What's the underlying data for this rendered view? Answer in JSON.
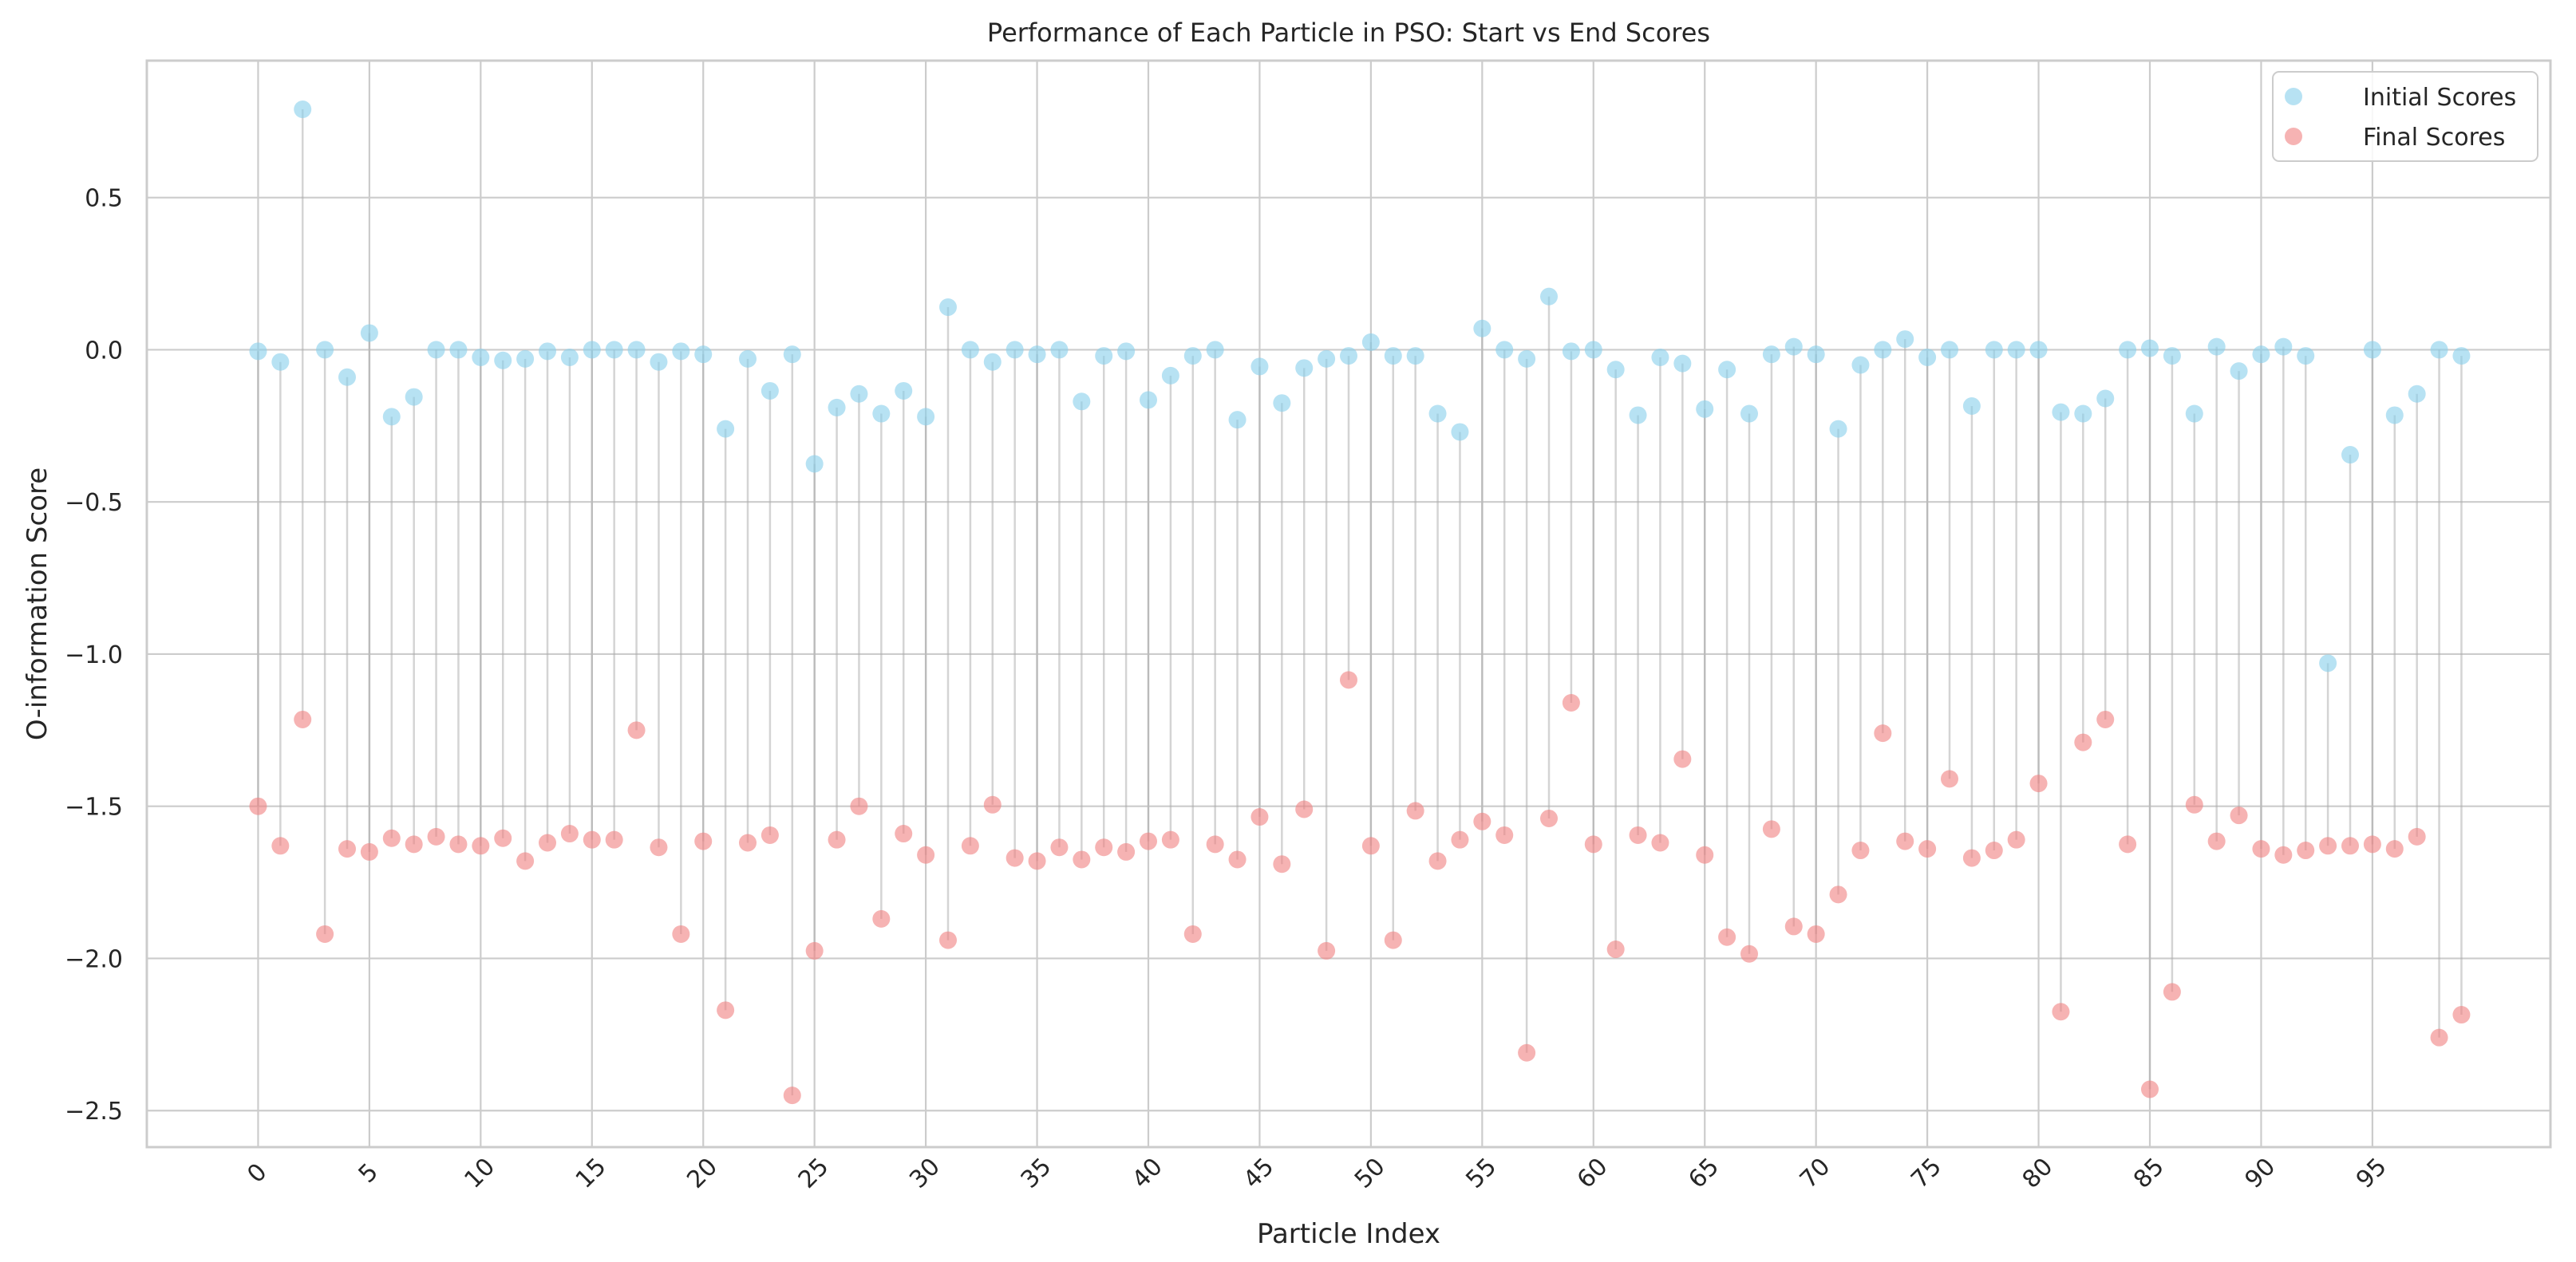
{
  "chart_data": {
    "type": "scatter",
    "title": "Performance of Each Particle in PSO: Start vs End Scores",
    "xlabel": "Particle Index",
    "ylabel": "O-information Score",
    "xlim": [
      -5,
      103
    ],
    "ylim": [
      -2.62,
      0.95
    ],
    "x_ticks": [
      0,
      5,
      10,
      15,
      20,
      25,
      30,
      35,
      40,
      45,
      50,
      55,
      60,
      65,
      70,
      75,
      80,
      85,
      90,
      95
    ],
    "y_ticks": [
      -2.5,
      -2.0,
      -1.5,
      -1.0,
      -0.5,
      0.0,
      0.5
    ],
    "y_tick_labels": [
      "−2.5",
      "−2.0",
      "−1.5",
      "−1.0",
      "−0.5",
      "0.0",
      "0.5"
    ],
    "grid": true,
    "legend_position": "top-right",
    "colors": {
      "initial": "#87ceeb",
      "final": "#f08080",
      "line": "#a9a9a9"
    },
    "series": [
      {
        "name": "Initial Scores",
        "values": [
          -0.005,
          -0.04,
          0.79,
          0.0,
          -0.09,
          0.055,
          -0.22,
          -0.155,
          0.0,
          0.0,
          -0.025,
          -0.035,
          -0.03,
          -0.005,
          -0.025,
          0.0,
          0.0,
          0.0,
          -0.04,
          -0.005,
          -0.015,
          -0.26,
          -0.03,
          -0.135,
          -0.015,
          -0.375,
          -0.19,
          -0.145,
          -0.21,
          -0.135,
          -0.22,
          0.14,
          0.0,
          -0.04,
          0.0,
          -0.015,
          0.0,
          -0.17,
          -0.02,
          -0.005,
          -0.165,
          -0.085,
          -0.02,
          0.0,
          -0.23,
          -0.055,
          -0.175,
          -0.06,
          -0.03,
          -0.02,
          0.025,
          -0.02,
          -0.02,
          -0.21,
          -0.27,
          0.07,
          0.0,
          -0.03,
          0.175,
          -0.005,
          0.0,
          -0.065,
          -0.215,
          -0.025,
          -0.045,
          -0.195,
          -0.065,
          -0.21,
          -0.015,
          0.01,
          -0.015,
          -0.26,
          -0.05,
          0.0,
          0.035,
          -0.025,
          0.0,
          -0.185,
          0.0,
          0.0,
          0.0,
          -0.205,
          -0.21,
          -0.16,
          0.0,
          0.005,
          -0.02,
          -0.21,
          0.01,
          -0.07,
          -0.015,
          0.01,
          -0.02,
          -1.03,
          -0.345,
          0.0,
          -0.215,
          -0.145,
          0.0,
          -0.02
        ]
      },
      {
        "name": "Final Scores",
        "values": [
          -1.5,
          -1.63,
          -1.215,
          -1.92,
          -1.64,
          -1.65,
          -1.605,
          -1.625,
          -1.6,
          -1.625,
          -1.63,
          -1.605,
          -1.68,
          -1.62,
          -1.59,
          -1.61,
          -1.61,
          -1.25,
          -1.635,
          -1.92,
          -1.615,
          -2.17,
          -1.62,
          -1.595,
          -2.45,
          -1.975,
          -1.61,
          -1.5,
          -1.87,
          -1.59,
          -1.66,
          -1.94,
          -1.63,
          -1.495,
          -1.67,
          -1.68,
          -1.635,
          -1.675,
          -1.635,
          -1.65,
          -1.615,
          -1.61,
          -1.92,
          -1.625,
          -1.675,
          -1.535,
          -1.69,
          -1.51,
          -1.975,
          -1.085,
          -1.63,
          -1.94,
          -1.515,
          -1.68,
          -1.61,
          -1.55,
          -1.595,
          -2.31,
          -1.54,
          -1.16,
          -1.625,
          -1.97,
          -1.595,
          -1.62,
          -1.345,
          -1.66,
          -1.93,
          -1.985,
          -1.575,
          -1.895,
          -1.92,
          -1.79,
          -1.645,
          -1.26,
          -1.615,
          -1.64,
          -1.41,
          -1.67,
          -1.645,
          -1.61,
          -1.425,
          -2.175,
          -1.29,
          -1.215,
          -1.625,
          -2.43,
          -2.11,
          -1.495,
          -1.615,
          -1.53,
          -1.64,
          -1.66,
          -1.645,
          -1.63,
          -1.63,
          -1.625,
          -1.64,
          -1.6,
          -2.26,
          -2.185
        ]
      }
    ]
  }
}
